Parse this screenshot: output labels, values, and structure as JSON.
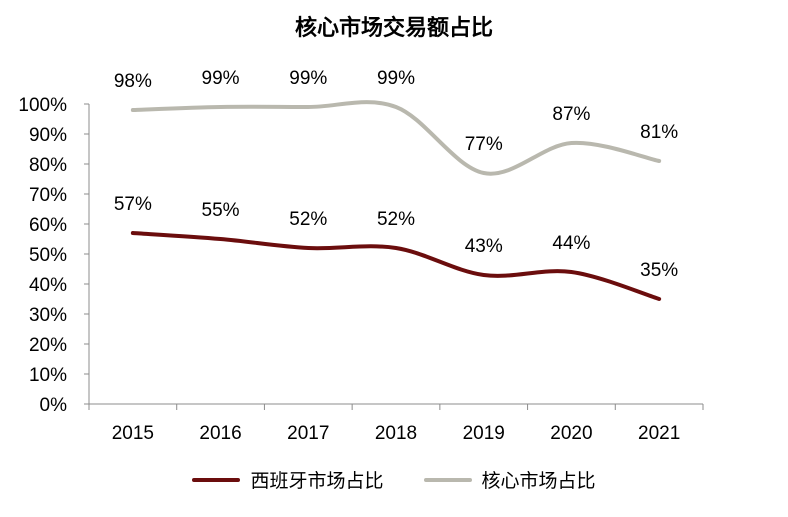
{
  "chart_data": {
    "type": "line",
    "title": "核心市场交易额占比",
    "categories": [
      "2015",
      "2016",
      "2017",
      "2018",
      "2019",
      "2020",
      "2021"
    ],
    "y_ticks": [
      "0%",
      "10%",
      "20%",
      "30%",
      "40%",
      "50%",
      "60%",
      "70%",
      "80%",
      "90%",
      "100%"
    ],
    "ylim": [
      0,
      100
    ],
    "grid": false,
    "legend_position": "bottom",
    "series": [
      {
        "name": "西班牙市场占比",
        "color": "#6b0d0d",
        "values": [
          57,
          55,
          52,
          52,
          43,
          44,
          35
        ],
        "labels": [
          "57%",
          "55%",
          "52%",
          "52%",
          "43%",
          "44%",
          "35%"
        ]
      },
      {
        "name": "核心市场占比",
        "color": "#b9b8ae",
        "values": [
          98,
          99,
          99,
          99,
          77,
          87,
          81
        ],
        "labels": [
          "98%",
          "99%",
          "99%",
          "99%",
          "77%",
          "87%",
          "81%"
        ]
      }
    ]
  }
}
